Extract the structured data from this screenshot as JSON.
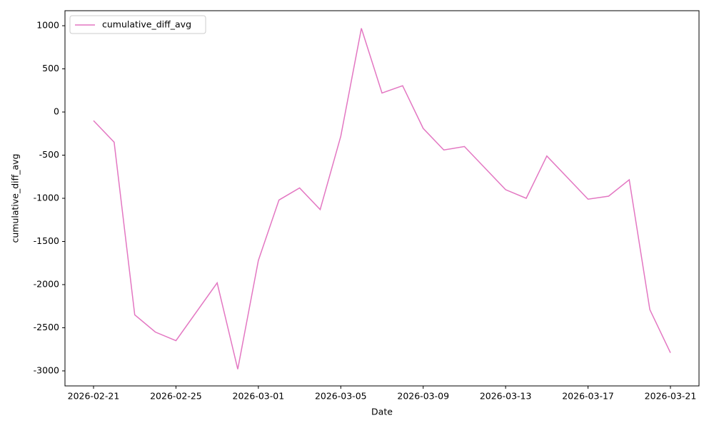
{
  "chart_data": {
    "type": "line",
    "x_label": "Date",
    "y_label": "cumulative_diff_avg",
    "x": [
      "2026-02-21",
      "2026-02-22",
      "2026-02-23",
      "2026-02-24",
      "2026-02-25",
      "2026-02-27",
      "2026-02-28",
      "2026-03-01",
      "2026-03-02",
      "2026-03-03",
      "2026-03-04",
      "2026-03-05",
      "2026-03-06",
      "2026-03-07",
      "2026-03-08",
      "2026-03-09",
      "2026-03-10",
      "2026-03-11",
      "2026-03-13",
      "2026-03-14",
      "2026-03-15",
      "2026-03-17",
      "2026-03-18",
      "2026-03-19",
      "2026-03-20",
      "2026-03-21"
    ],
    "series": [
      {
        "name": "cumulative_diff_avg",
        "color": "#e377c2",
        "values": [
          -100,
          -350,
          -2350,
          -2550,
          -2650,
          -1980,
          -2980,
          -1720,
          -1020,
          -880,
          -1130,
          -280,
          970,
          220,
          305,
          -190,
          -440,
          -400,
          -900,
          -1000,
          -510,
          -1010,
          -975,
          -785,
          -2290,
          -2790
        ]
      }
    ],
    "xlim": [
      "2026-02-19T14:44",
      "2026-03-22T09:16"
    ],
    "xticks": [
      "2026-02-21",
      "2026-02-25",
      "2026-03-01",
      "2026-03-05",
      "2026-03-09",
      "2026-03-13",
      "2026-03-17",
      "2026-03-21"
    ],
    "ylim": [
      -3174,
      1174
    ],
    "yticks": [
      -3000,
      -2500,
      -2000,
      -1500,
      -1000,
      -500,
      0,
      500,
      1000
    ],
    "legend": "upper left",
    "grid": false
  }
}
